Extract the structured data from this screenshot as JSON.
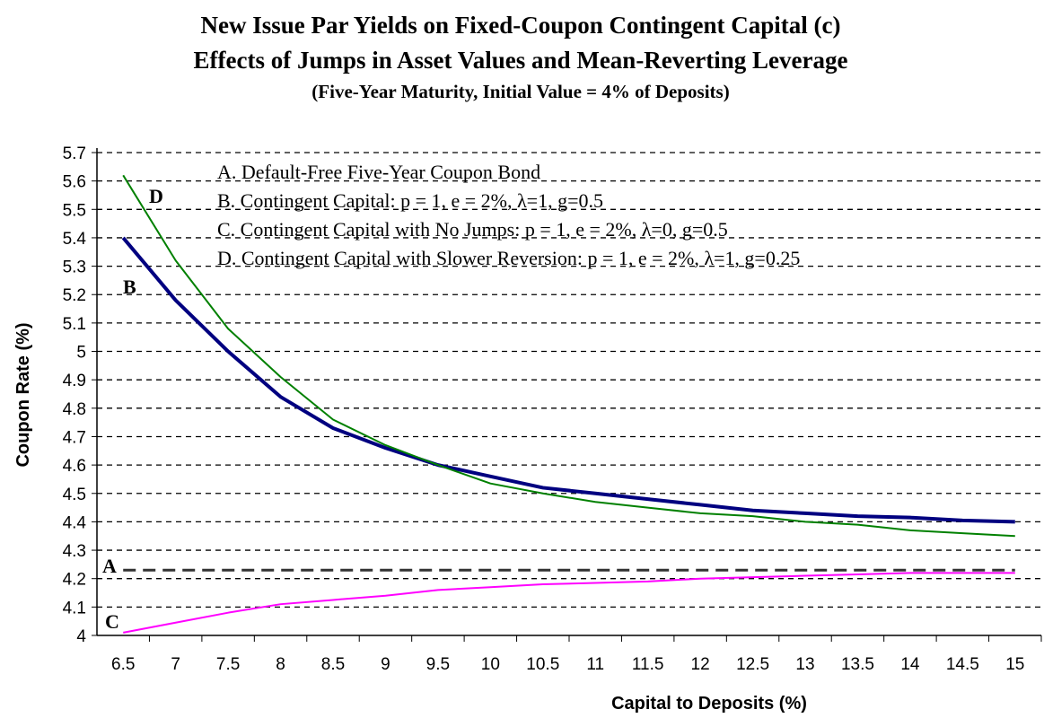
{
  "chart_data": {
    "type": "line",
    "title": "New Issue Par Yields on Fixed-Coupon Contingent Capital (c)",
    "subtitle": "Effects of Jumps in Asset Values and Mean-Reverting Leverage",
    "subtitle2": "(Five-Year Maturity, Initial Value = 4% of Deposits)",
    "xlabel": "Capital to Deposits (%)",
    "ylabel": "Coupon Rate (%)",
    "ylim": [
      4,
      5.7
    ],
    "yticks": [
      "4",
      "4.1",
      "4.2",
      "4.3",
      "4.4",
      "4.5",
      "4.6",
      "4.7",
      "4.8",
      "4.9",
      "5",
      "5.1",
      "5.2",
      "5.3",
      "5.4",
      "5.5",
      "5.6",
      "5.7"
    ],
    "categories": [
      "6.5",
      "7",
      "7.5",
      "8",
      "8.5",
      "9",
      "9.5",
      "10",
      "10.5",
      "11",
      "11.5",
      "12",
      "12.5",
      "13",
      "13.5",
      "14",
      "14.5",
      "15"
    ],
    "grid": true,
    "series": [
      {
        "name": "A",
        "label": "A",
        "legend": "A.  Default-Free Five-Year Coupon Bond",
        "color": "#333333",
        "dash": true,
        "values": [
          4.23,
          4.23,
          4.23,
          4.23,
          4.23,
          4.23,
          4.23,
          4.23,
          4.23,
          4.23,
          4.23,
          4.23,
          4.23,
          4.23,
          4.23,
          4.23,
          4.23,
          4.23
        ]
      },
      {
        "name": "B",
        "label": "B",
        "legend": "B. Contingent Capital: p = 1,  e = 2%,  λ=1,  g=0.5",
        "color": "#000080",
        "values": [
          5.4,
          5.18,
          5.0,
          4.84,
          4.73,
          4.66,
          4.6,
          4.56,
          4.52,
          4.5,
          4.48,
          4.46,
          4.44,
          4.43,
          4.42,
          4.415,
          4.405,
          4.4
        ]
      },
      {
        "name": "C",
        "label": "C",
        "legend": "C. Contingent Capital with No Jumps: p = 1,  e = 2%,  λ=0,  g=0.5",
        "color": "#ff00ff",
        "values": [
          4.01,
          4.045,
          4.08,
          4.11,
          4.125,
          4.14,
          4.16,
          4.17,
          4.18,
          4.185,
          4.19,
          4.2,
          4.205,
          4.21,
          4.215,
          4.22,
          4.22,
          4.22
        ]
      },
      {
        "name": "D",
        "label": "D",
        "legend": "D. Contingent Capital with Slower Reversion: p = 1,  e = 2%,  λ=1,  g=0.25",
        "color": "#008000",
        "values": [
          5.62,
          5.32,
          5.08,
          4.91,
          4.76,
          4.67,
          4.6,
          4.535,
          4.5,
          4.47,
          4.45,
          4.43,
          4.42,
          4.4,
          4.39,
          4.37,
          4.36,
          4.35
        ]
      }
    ]
  }
}
